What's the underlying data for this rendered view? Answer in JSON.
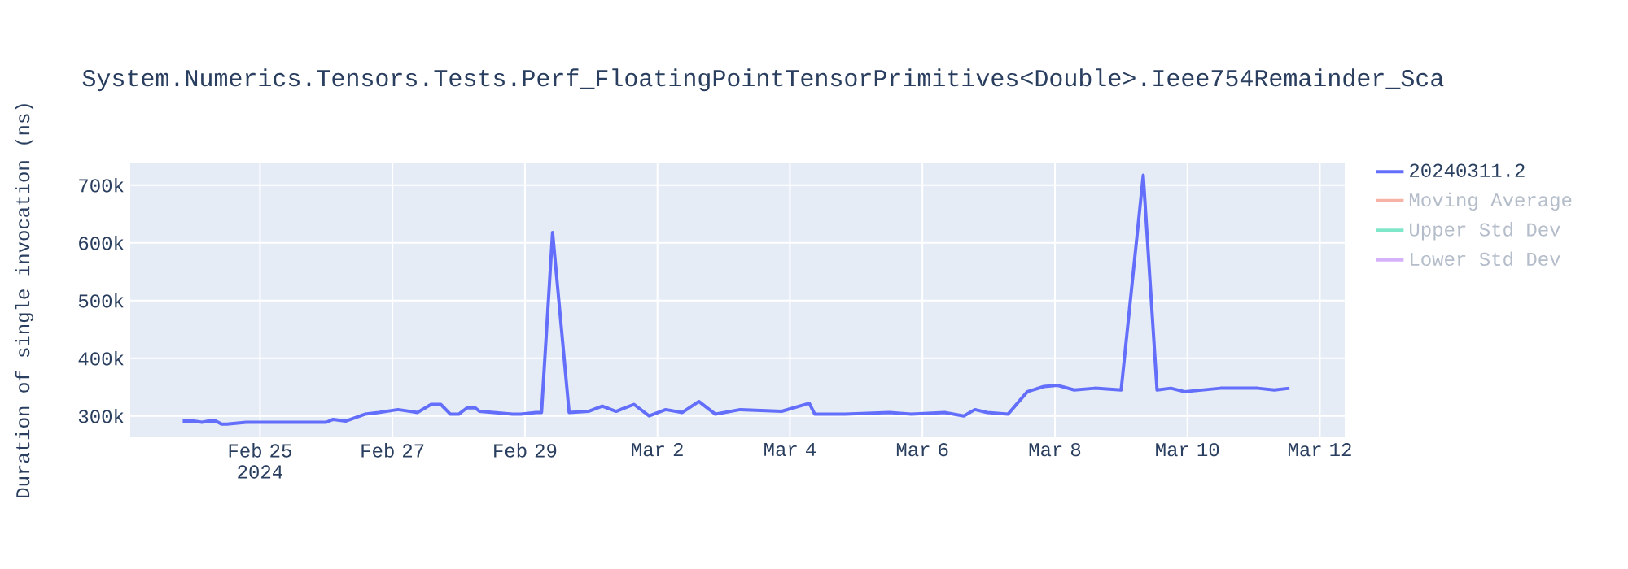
{
  "chart_data": {
    "type": "line",
    "title": "System.Numerics.Tensors.Tests.Perf_FloatingPointTensorPrimitives<Double>.Ieee754Remainder_Sca",
    "ylabel": "Duration of single invocation (ns)",
    "xlim": [
      "2024-02-23T01:00",
      "2024-03-12T09:00"
    ],
    "xticks": [
      {
        "value": "2024-02-25",
        "label": "Feb 25 2024"
      },
      {
        "value": "2024-02-27",
        "label": "Feb 27"
      },
      {
        "value": "2024-02-29",
        "label": "Feb 29"
      },
      {
        "value": "2024-03-02",
        "label": "Mar 2"
      },
      {
        "value": "2024-03-04",
        "label": "Mar 4"
      },
      {
        "value": "2024-03-06",
        "label": "Mar 6"
      },
      {
        "value": "2024-03-08",
        "label": "Mar 8"
      },
      {
        "value": "2024-03-10",
        "label": "Mar 10"
      },
      {
        "value": "2024-03-12",
        "label": "Mar 12"
      }
    ],
    "ylim": [
      263000,
      739000
    ],
    "yticks": [
      {
        "value": 300000,
        "label": "300k"
      },
      {
        "value": 400000,
        "label": "400k"
      },
      {
        "value": 500000,
        "label": "500k"
      },
      {
        "value": 600000,
        "label": "600k"
      },
      {
        "value": 700000,
        "label": "700k"
      }
    ],
    "grid": true,
    "legend": "right",
    "marker": "none",
    "line_style": "solid",
    "series": [
      {
        "name": "20240311.2",
        "color": "#636efa",
        "x": [
          "2024-02-23T20:00",
          "2024-02-24T00:00",
          "2024-02-24T03:00",
          "2024-02-24T05:00",
          "2024-02-24T08:00",
          "2024-02-24T10:00",
          "2024-02-24T12:00",
          "2024-02-24T19:00",
          "2024-02-25T16:00",
          "2024-02-26T00:00",
          "2024-02-26T02:30",
          "2024-02-26T07:00",
          "2024-02-26T14:00",
          "2024-02-26T19:00",
          "2024-02-27T02:00",
          "2024-02-27T09:00",
          "2024-02-27T14:00",
          "2024-02-27T17:30",
          "2024-02-27T21:00",
          "2024-02-28T00:00",
          "2024-02-28T03:00",
          "2024-02-28T06:00",
          "2024-02-28T07:30",
          "2024-02-28T19:30",
          "2024-02-28T22:30",
          "2024-02-29T04:00",
          "2024-02-29T06:00",
          "2024-02-29T10:00",
          "2024-02-29T16:00",
          "2024-02-29T23:00",
          "2024-03-01T04:00",
          "2024-03-01T09:00",
          "2024-03-01T15:30",
          "2024-03-01T21:00",
          "2024-03-02T03:00",
          "2024-03-02T09:00",
          "2024-03-02T15:00",
          "2024-03-02T21:00",
          "2024-03-03T06:00",
          "2024-03-03T21:00",
          "2024-03-04T07:00",
          "2024-03-04T09:00",
          "2024-03-04T20:00",
          "2024-03-05T12:00",
          "2024-03-05T20:00",
          "2024-03-06T08:00",
          "2024-03-06T15:00",
          "2024-03-06T19:00",
          "2024-03-06T23:30",
          "2024-03-07T07:00",
          "2024-03-07T14:00",
          "2024-03-07T20:00",
          "2024-03-08T01:00",
          "2024-03-08T07:00",
          "2024-03-08T14:30",
          "2024-03-09T00:00",
          "2024-03-09T08:00",
          "2024-03-09T13:00",
          "2024-03-09T18:00",
          "2024-03-09T23:00",
          "2024-03-10T12:00",
          "2024-03-11T01:30",
          "2024-03-11T07:30",
          "2024-03-11T13:00"
        ],
        "values": [
          291000,
          291000,
          289000,
          291000,
          291000,
          286000,
          286000,
          289000,
          289000,
          289000,
          294000,
          291000,
          303000,
          306000,
          311000,
          306000,
          320000,
          320000,
          303000,
          303000,
          314000,
          314000,
          308000,
          303000,
          303000,
          306000,
          306000,
          618000,
          306000,
          308000,
          317000,
          308000,
          320000,
          300000,
          311000,
          306000,
          325000,
          303000,
          311000,
          308000,
          322000,
          303000,
          303000,
          306000,
          303000,
          306000,
          300000,
          311000,
          306000,
          303000,
          342000,
          351000,
          353000,
          345000,
          348000,
          345000,
          717000,
          345000,
          348000,
          342000,
          348000,
          348000,
          345000,
          348000
        ]
      },
      {
        "name": "Moving Average",
        "color": "#f5b2a5"
      },
      {
        "name": "Upper Std Dev",
        "color": "#80e6ca"
      },
      {
        "name": "Lower Std Dev",
        "color": "#d5b1fc"
      }
    ]
  }
}
